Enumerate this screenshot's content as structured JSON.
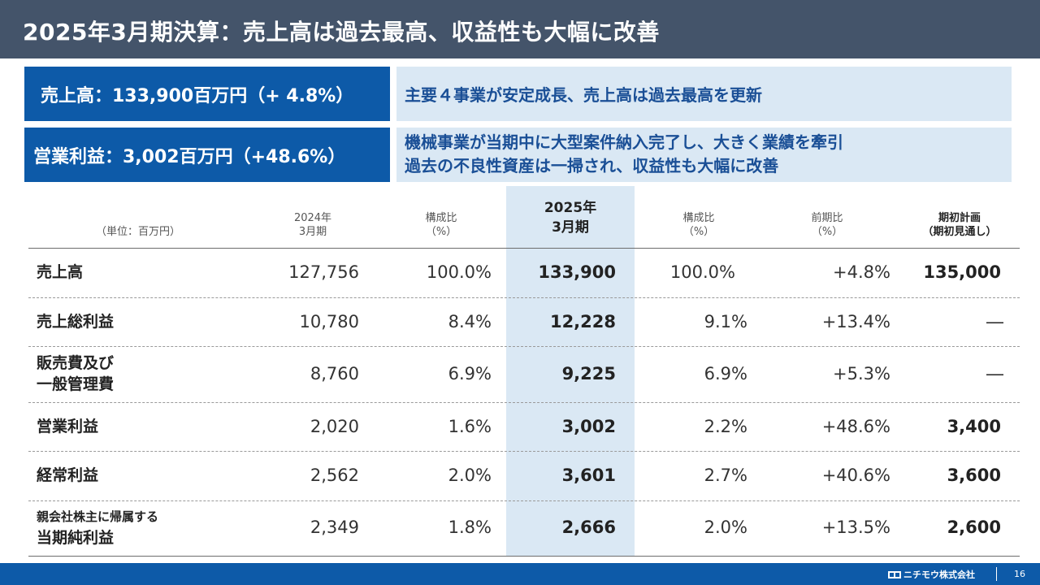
{
  "header": {
    "title": "2025年3月期決算：売上高は過去最高、収益性も大幅に改善"
  },
  "kpis": [
    {
      "text": "売上高：133,900百万円（+ 4.8%）"
    },
    {
      "text": "営業利益：3,002百万円（+48.6%）"
    }
  ],
  "notes": {
    "line1": "主要４事業が安定成長、売上高は過去最高を更新",
    "line2a": "機械事業が当期中に大型案件納入完了し、大きく業績を牽引",
    "line2b": "過去の不良性資産は一掃され、収益性も大幅に改善"
  },
  "table": {
    "unit": "（単位：百万円）",
    "columns": {
      "fy2024_a": "2024年",
      "fy2024_b": "3月期",
      "ratio1_a": "構成比",
      "ratio1_b": "（%）",
      "fy2025_a": "2025年",
      "fy2025_b": "3月期",
      "ratio2_a": "構成比",
      "ratio2_b": "（%）",
      "yoy_a": "前期比",
      "yoy_b": "（%）",
      "plan_a": "期初計画",
      "plan_b": "（期初見通し）"
    },
    "rows": [
      {
        "label": "売上高",
        "fy2024": "127,756",
        "ratio2024": "100.0%",
        "fy2025": "133,900",
        "ratio2025": "100.0%",
        "yoy": "+4.8%",
        "plan": "135,000"
      },
      {
        "label": "売上総利益",
        "fy2024": "10,780",
        "ratio2024": "8.4%",
        "fy2025": "12,228",
        "ratio2025": "9.1%",
        "yoy": "+13.4%",
        "plan": "―"
      },
      {
        "label_a": "販売費及び",
        "label_b": "一般管理費",
        "fy2024": "8,760",
        "ratio2024": "6.9%",
        "fy2025": "9,225",
        "ratio2025": "6.9%",
        "yoy": "+5.3%",
        "plan": "―"
      },
      {
        "label": "営業利益",
        "fy2024": "2,020",
        "ratio2024": "1.6%",
        "fy2025": "3,002",
        "ratio2025": "2.2%",
        "yoy": "+48.6%",
        "plan": "3,400"
      },
      {
        "label": "経常利益",
        "fy2024": "2,562",
        "ratio2024": "2.0%",
        "fy2025": "3,601",
        "ratio2025": "2.7%",
        "yoy": "+40.6%",
        "plan": "3,600"
      },
      {
        "label_a": "親会社株主に帰属する",
        "label_b": "当期純利益",
        "fy2024": "2,349",
        "ratio2024": "1.8%",
        "fy2025": "2,666",
        "ratio2025": "2.0%",
        "yoy": "+13.5%",
        "plan": "2,600"
      }
    ]
  },
  "footer": {
    "company": "ニチモウ株式会社",
    "page": "16"
  },
  "colors": {
    "title_bg": "#44546a",
    "accent_blue": "#0d5aa8",
    "light_blue": "#dae8f4",
    "note_text": "#1a4f96"
  }
}
